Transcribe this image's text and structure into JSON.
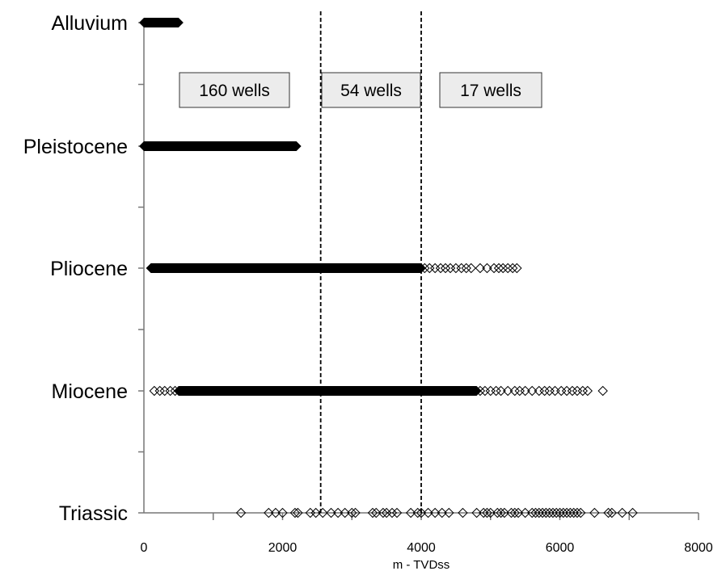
{
  "chart_data": {
    "type": "scatter",
    "xlabel": "m - TVDss",
    "xlim": [
      0,
      8000
    ],
    "x_ticks": [
      "0",
      "2000",
      "4000",
      "6000",
      "8000"
    ],
    "categories": [
      "Alluvium",
      "Pleistocene",
      "Pliocene",
      "Miocene",
      "Triassic"
    ],
    "grid": false,
    "dividers_x": [
      2550,
      4000
    ],
    "annotations": [
      "160 wells",
      "54 wells",
      "17 wells"
    ],
    "marker": "hollow-diamond",
    "series": [
      {
        "category": "Alluvium",
        "dense_ranges": [
          [
            0,
            500
          ]
        ],
        "points": []
      },
      {
        "category": "Pleistocene",
        "dense_ranges": [
          [
            0,
            2200
          ]
        ],
        "points": []
      },
      {
        "category": "Pliocene",
        "dense_ranges": [
          [
            100,
            4000
          ]
        ],
        "points": [
          4050,
          4120,
          4200,
          4280,
          4350,
          4420,
          4500,
          4580,
          4650,
          4720,
          4850,
          4950,
          5050,
          5120,
          5180,
          5250,
          5320,
          5380
        ]
      },
      {
        "category": "Miocene",
        "dense_ranges": [
          [
            500,
            4800
          ]
        ],
        "points": [
          150,
          230,
          300,
          380,
          450,
          4850,
          4920,
          5000,
          5080,
          5150,
          5250,
          5350,
          5420,
          5500,
          5600,
          5700,
          5780,
          5850,
          5930,
          6020,
          6100,
          6180,
          6250,
          6330,
          6400,
          6620
        ]
      },
      {
        "category": "Triassic",
        "dense_ranges": [],
        "points": [
          1400,
          1800,
          1900,
          2000,
          2180,
          2220,
          2400,
          2480,
          2580,
          2700,
          2800,
          2900,
          3000,
          3050,
          3300,
          3350,
          3450,
          3500,
          3580,
          3650,
          3850,
          3950,
          4000,
          4100,
          4200,
          4300,
          4400,
          4600,
          4800,
          4900,
          4950,
          5000,
          5100,
          5150,
          5200,
          5300,
          5350,
          5400,
          5500,
          5600,
          5650,
          5700,
          5750,
          5800,
          5850,
          5900,
          5950,
          6000,
          6050,
          6100,
          6150,
          6200,
          6250,
          6300,
          6500,
          6700,
          6750,
          6900,
          7050
        ]
      }
    ]
  }
}
